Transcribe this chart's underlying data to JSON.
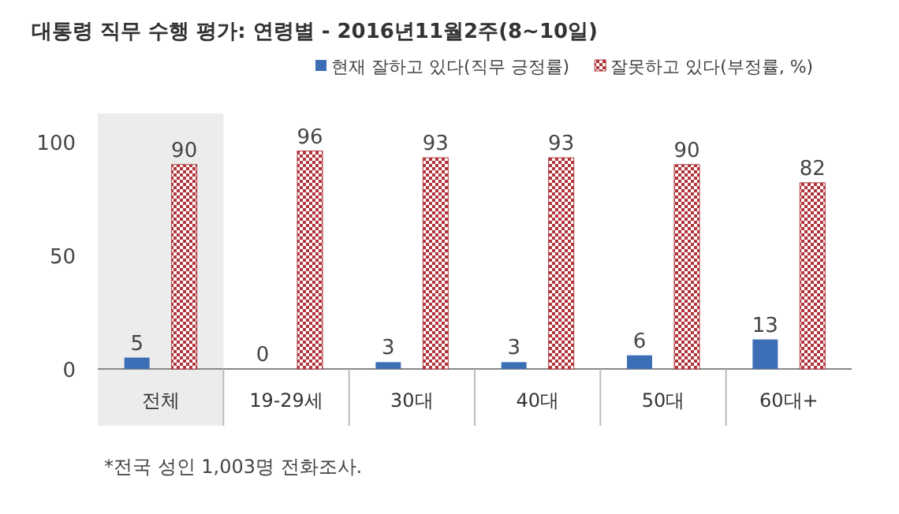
{
  "chart_data": {
    "type": "bar",
    "title": "대통령 직무 수행 평가: 연령별 - 2016년11월2주(8~10일)",
    "categories": [
      "전체",
      "19-29세",
      "30대",
      "40대",
      "50대",
      "60대+"
    ],
    "series": [
      {
        "name": "현재 잘하고 있다(직무 긍정률)",
        "color": "#3d6fb6",
        "values": [
          5,
          0,
          3,
          3,
          6,
          13
        ]
      },
      {
        "name": "잘못하고 있다(부정률, %)",
        "color": "#b0353a",
        "values": [
          90,
          96,
          93,
          93,
          90,
          82
        ]
      }
    ],
    "ylim": [
      0,
      100
    ],
    "yticks": [
      0,
      50,
      100
    ],
    "data_labels": true,
    "legend": "top",
    "grid": false,
    "bands": [
      {
        "axis": "x",
        "from": "전체",
        "to": "전체",
        "color": "#ececec"
      }
    ],
    "annotations": [
      "*전국 성인 1,003명 전화조사."
    ]
  }
}
